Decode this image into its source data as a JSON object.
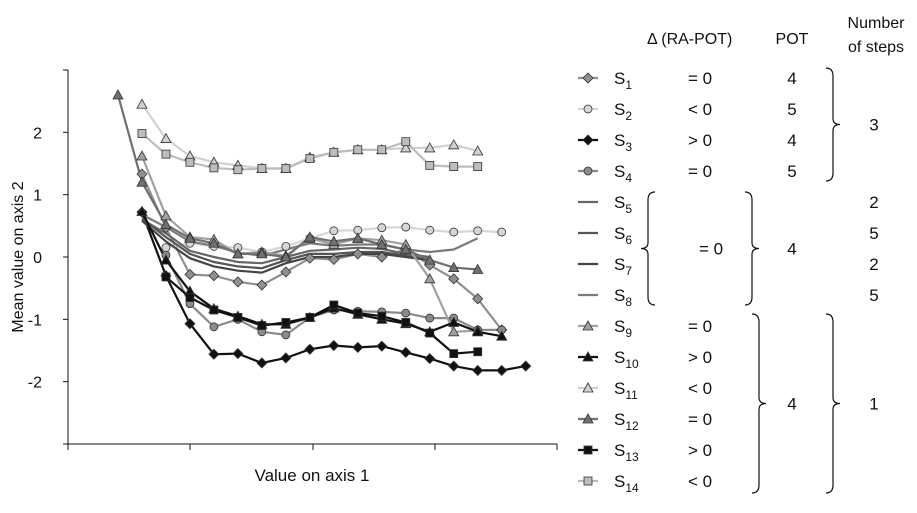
{
  "chart_data": {
    "type": "line",
    "title": "",
    "xlabel": "Value on axis 1",
    "ylabel": "Mean value on axis 2",
    "ylim": [
      -3,
      3
    ],
    "xlim": [
      0,
      20
    ],
    "yticks": [
      -2,
      -1,
      0,
      1,
      2
    ],
    "ytick_labels": [
      "-2",
      "-1",
      "0",
      "1",
      "2"
    ],
    "grid": false,
    "legend_headers": {
      "delta": "Δ (RA-POT)",
      "pot": "POT",
      "steps_line1": "Number",
      "steps_line2": "of steps"
    },
    "series": [
      {
        "name": "S1",
        "label_main": "S",
        "label_sub": "1",
        "delta": "= 0",
        "color": "#909090",
        "marker": "diamond",
        "x": [
          2,
          3,
          4,
          5,
          6,
          7,
          8,
          9,
          10,
          11,
          12,
          13,
          14,
          15,
          16,
          17
        ],
        "y": [
          1.33,
          0.47,
          -0.28,
          -0.3,
          -0.4,
          -0.45,
          -0.24,
          -0.02,
          -0.04,
          0.05,
          0,
          0.12,
          -0.13,
          -0.35,
          -0.67,
          -1.17
        ]
      },
      {
        "name": "S2",
        "label_main": "S",
        "label_sub": "2",
        "delta": "< 0",
        "color": "#d6d6d6",
        "marker": "circle",
        "x": [
          3,
          4,
          5,
          6,
          7,
          8,
          9,
          10,
          11,
          12,
          13,
          14,
          15,
          16,
          17
        ],
        "y": [
          0.15,
          0.22,
          0.17,
          0.15,
          0.08,
          0.17,
          0.3,
          0.42,
          0.43,
          0.47,
          0.48,
          0.43,
          0.4,
          0.42,
          0.4
        ]
      },
      {
        "name": "S3",
        "label_main": "S",
        "label_sub": "3",
        "delta": "> 0",
        "color": "#111111",
        "marker": "diamond",
        "x": [
          2,
          3,
          4,
          5,
          6,
          7,
          8,
          9,
          10,
          11,
          12,
          13,
          14,
          15,
          16,
          17,
          18
        ],
        "y": [
          0.72,
          -0.3,
          -1.07,
          -1.56,
          -1.55,
          -1.7,
          -1.62,
          -1.48,
          -1.42,
          -1.45,
          -1.43,
          -1.53,
          -1.63,
          -1.75,
          -1.82,
          -1.82,
          -1.75
        ]
      },
      {
        "name": "S4",
        "label_main": "S",
        "label_sub": "4",
        "delta": "= 0",
        "color": "#8a8a8a",
        "marker": "circle",
        "x": [
          3,
          4,
          5,
          6,
          7,
          8,
          9,
          10,
          11,
          12,
          13,
          14,
          15,
          16,
          17
        ],
        "y": [
          0.03,
          -0.75,
          -1.12,
          -1.0,
          -1.2,
          -1.25,
          -0.97,
          -0.85,
          -0.87,
          -0.88,
          -0.9,
          -0.98,
          -0.98,
          -1.17,
          -1.17
        ]
      },
      {
        "name": "S5",
        "label_main": "S",
        "label_sub": "5",
        "delta": "",
        "color": "#666666",
        "marker": "none",
        "x": [
          2,
          3,
          4,
          5,
          6,
          7,
          8,
          9,
          10,
          11,
          12,
          13,
          14
        ],
        "y": [
          0.6,
          0.38,
          0.1,
          0.0,
          -0.08,
          -0.1,
          0.0,
          0.1,
          0.12,
          0.15,
          0.13,
          0.05,
          0.0
        ]
      },
      {
        "name": "S6",
        "label_main": "S",
        "label_sub": "6",
        "delta": "",
        "color": "#555555",
        "marker": "none",
        "x": [
          2,
          3,
          4,
          5,
          6,
          7,
          8,
          9,
          10,
          11,
          12,
          13,
          14
        ],
        "y": [
          0.62,
          0.32,
          0.05,
          -0.08,
          -0.15,
          -0.18,
          -0.05,
          0.05,
          0.05,
          0.08,
          0.08,
          0.02,
          -0.05
        ]
      },
      {
        "name": "S7",
        "label_main": "S",
        "label_sub": "7",
        "delta": "",
        "color": "#444444",
        "marker": "none",
        "x": [
          2,
          3,
          4,
          5,
          6,
          7,
          8,
          9,
          10,
          11,
          12,
          13,
          14
        ],
        "y": [
          0.58,
          0.25,
          -0.02,
          -0.15,
          -0.22,
          -0.25,
          -0.1,
          0.0,
          0.0,
          0.05,
          0.05,
          0.0,
          -0.05
        ]
      },
      {
        "name": "S8",
        "label_main": "S",
        "label_sub": "8",
        "delta": "",
        "color": "#7a7a7a",
        "marker": "none",
        "x": [
          2,
          3,
          4,
          5,
          6,
          7,
          8,
          9,
          10,
          11,
          12,
          13,
          14,
          15,
          16
        ],
        "y": [
          0.68,
          0.48,
          0.25,
          0.18,
          0.07,
          0.02,
          0.12,
          0.22,
          0.18,
          0.2,
          0.2,
          0.12,
          0.08,
          0.12,
          0.3
        ]
      },
      {
        "name": "S9",
        "label_main": "S",
        "label_sub": "9",
        "delta": "= 0",
        "color": "#a0a0a0",
        "marker": "triangle",
        "x": [
          2,
          3,
          4,
          5,
          6,
          7,
          8,
          9,
          10,
          11,
          12,
          13,
          14,
          15,
          16
        ],
        "y": [
          1.62,
          0.66,
          0.32,
          0.28,
          0.05,
          0.08,
          0.02,
          0.3,
          0.2,
          0.3,
          0.27,
          0.2,
          -0.35,
          -1.2,
          -1.18
        ]
      },
      {
        "name": "S10",
        "label_main": "S",
        "label_sub": "10",
        "delta": "> 0",
        "color": "#111111",
        "marker": "triangle",
        "x": [
          2,
          3,
          4,
          5,
          6,
          7,
          8,
          9,
          10,
          11,
          12,
          13,
          14,
          15,
          16,
          17
        ],
        "y": [
          0.73,
          -0.05,
          -0.55,
          -0.83,
          -0.95,
          -1.08,
          -1.08,
          -0.97,
          -0.82,
          -0.92,
          -1.0,
          -1.07,
          -1.2,
          -1.05,
          -1.2,
          -1.27
        ]
      },
      {
        "name": "S11",
        "label_main": "S",
        "label_sub": "11",
        "delta": "< 0",
        "color": "#d0d0d0",
        "marker": "triangle",
        "x": [
          2,
          3,
          4,
          5,
          6,
          7,
          8,
          9,
          10,
          11,
          12,
          13,
          14,
          15,
          16
        ],
        "y": [
          2.45,
          1.9,
          1.62,
          1.52,
          1.47,
          1.42,
          1.42,
          1.6,
          1.68,
          1.72,
          1.72,
          1.75,
          1.75,
          1.8,
          1.7
        ]
      },
      {
        "name": "S12",
        "label_main": "S",
        "label_sub": "12",
        "delta": "= 0",
        "color": "#707070",
        "marker": "triangle",
        "x": [
          1,
          2,
          3,
          4,
          5,
          6,
          7,
          8,
          9,
          10,
          11,
          12,
          13,
          14,
          15,
          16
        ],
        "y": [
          2.6,
          1.2,
          0.52,
          0.3,
          0.22,
          0.05,
          0.05,
          0.0,
          0.32,
          0.25,
          0.3,
          0.2,
          0.12,
          -0.05,
          -0.17,
          -0.2
        ]
      },
      {
        "name": "S13",
        "label_main": "S",
        "label_sub": "13",
        "delta": "> 0",
        "color": "#111111",
        "marker": "square",
        "x": [
          3,
          4,
          5,
          6,
          7,
          8,
          9,
          10,
          11,
          12,
          13,
          14,
          15,
          16
        ],
        "y": [
          -0.32,
          -0.65,
          -0.85,
          -0.97,
          -1.1,
          -1.05,
          -0.97,
          -0.77,
          -0.9,
          -0.95,
          -1.05,
          -1.22,
          -1.55,
          -1.52
        ]
      },
      {
        "name": "S14",
        "label_main": "S",
        "label_sub": "14",
        "delta": "< 0",
        "color": "#bdbdbd",
        "marker": "square",
        "x": [
          2,
          3,
          4,
          5,
          6,
          7,
          8,
          9,
          10,
          11,
          12,
          13,
          14,
          15,
          16
        ],
        "y": [
          1.98,
          1.65,
          1.52,
          1.43,
          1.4,
          1.42,
          1.42,
          1.58,
          1.68,
          1.72,
          1.72,
          1.85,
          1.47,
          1.45,
          1.45
        ]
      }
    ],
    "legend_groups": {
      "delta_group_S5_S8": "= 0",
      "pot_values": [
        "4",
        "5",
        "4",
        "5"
      ],
      "pot_group_S5_S8": "4",
      "pot_group_S9_S14": "4",
      "steps_group_S1_S4": "3",
      "steps_S5_S8": [
        "2",
        "5",
        "2",
        "5"
      ],
      "steps_group_S9_S14": "1"
    }
  }
}
